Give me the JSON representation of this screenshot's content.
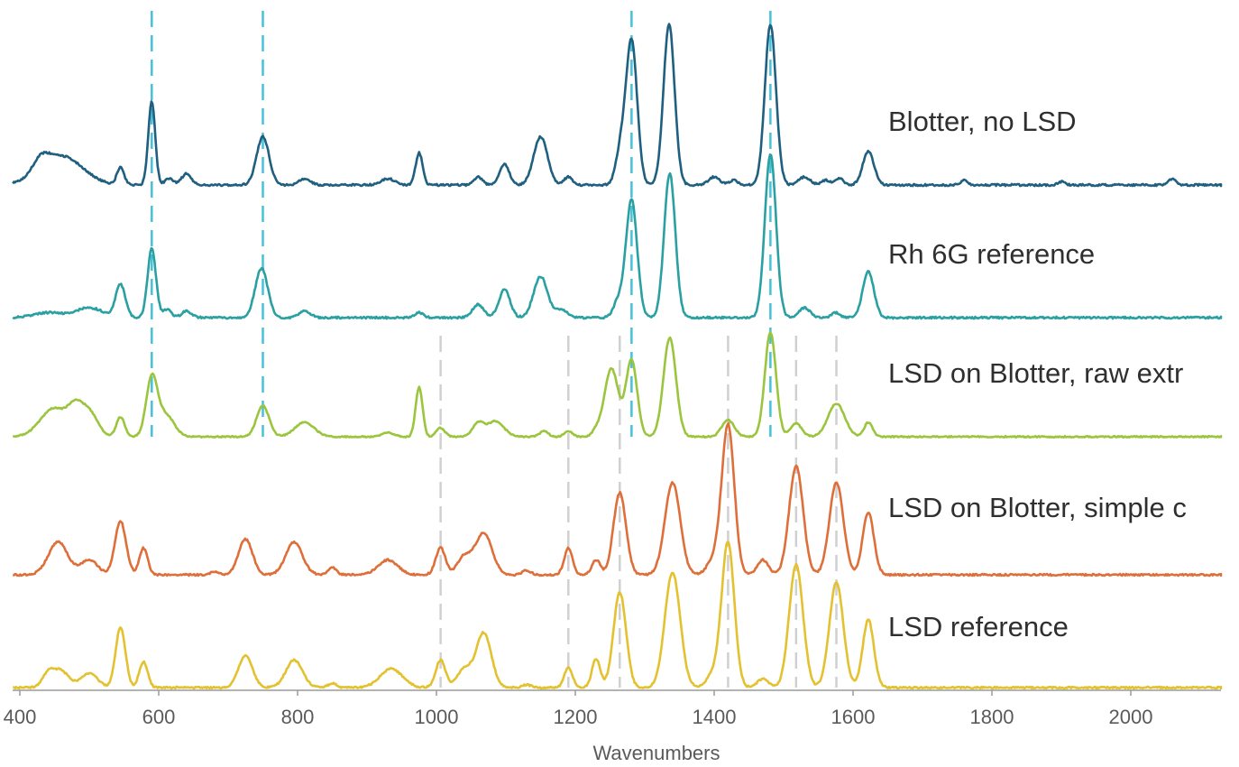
{
  "chart_data": {
    "type": "line",
    "xlabel": "Wavenumbers",
    "ylabel": "",
    "xlim": [
      400,
      2150
    ],
    "x_ticks": [
      400,
      600,
      800,
      1000,
      1200,
      1400,
      1600,
      1800,
      2000
    ],
    "x_tick_labels": [
      "400",
      "600",
      "800",
      "1000",
      "1200",
      "1400",
      "1600",
      "1800",
      "2000"
    ],
    "grid": false,
    "legend": "inline labels to the right of each trace",
    "blue_reference_lines": [
      590,
      750,
      1281,
      1481
    ],
    "grey_reference_lines": [
      1006,
      1190,
      1264,
      1420,
      1518,
      1576
    ],
    "series": [
      {
        "name": "Blotter, no LSD",
        "label": "Blotter, no LSD",
        "color": "#1f5f7f",
        "peaks": [
          [
            460,
            0.18,
            30
          ],
          [
            430,
            0.08,
            12
          ],
          [
            545,
            0.11,
            5
          ],
          [
            590,
            0.52,
            5
          ],
          [
            615,
            0.04,
            6
          ],
          [
            640,
            0.07,
            7
          ],
          [
            750,
            0.3,
            9
          ],
          [
            810,
            0.04,
            8
          ],
          [
            930,
            0.04,
            10
          ],
          [
            975,
            0.2,
            5
          ],
          [
            1060,
            0.05,
            6
          ],
          [
            1098,
            0.13,
            7
          ],
          [
            1150,
            0.3,
            10
          ],
          [
            1190,
            0.05,
            6
          ],
          [
            1265,
            0.2,
            7
          ],
          [
            1281,
            0.9,
            8
          ],
          [
            1335,
            1.0,
            8
          ],
          [
            1400,
            0.05,
            8
          ],
          [
            1428,
            0.03,
            6
          ],
          [
            1481,
            1.0,
            8
          ],
          [
            1530,
            0.05,
            8
          ],
          [
            1560,
            0.03,
            6
          ],
          [
            1580,
            0.04,
            6
          ],
          [
            1622,
            0.21,
            8
          ],
          [
            1760,
            0.03,
            5
          ],
          [
            1900,
            0.02,
            5
          ],
          [
            2060,
            0.04,
            5
          ]
        ]
      },
      {
        "name": "Rh 6G reference",
        "label": "Rh 6G reference",
        "color": "#2ba0a2",
        "peaks": [
          [
            440,
            0.03,
            20
          ],
          [
            500,
            0.06,
            20
          ],
          [
            545,
            0.2,
            7
          ],
          [
            590,
            0.42,
            6
          ],
          [
            612,
            0.05,
            6
          ],
          [
            640,
            0.04,
            7
          ],
          [
            748,
            0.3,
            9
          ],
          [
            810,
            0.04,
            8
          ],
          [
            975,
            0.03,
            6
          ],
          [
            1060,
            0.08,
            8
          ],
          [
            1098,
            0.17,
            8
          ],
          [
            1150,
            0.25,
            10
          ],
          [
            1180,
            0.05,
            8
          ],
          [
            1262,
            0.1,
            7
          ],
          [
            1281,
            0.72,
            8
          ],
          [
            1336,
            0.88,
            8
          ],
          [
            1481,
            1.0,
            8
          ],
          [
            1530,
            0.06,
            8
          ],
          [
            1575,
            0.03,
            6
          ],
          [
            1622,
            0.28,
            8
          ]
        ]
      },
      {
        "name": "LSD on Blotter, raw extract",
        "label": "LSD on Blotter, raw extr",
        "color": "#9ac53d",
        "peaks": [
          [
            450,
            0.26,
            20
          ],
          [
            480,
            0.2,
            10
          ],
          [
            500,
            0.22,
            12
          ],
          [
            545,
            0.18,
            6
          ],
          [
            590,
            0.52,
            8
          ],
          [
            610,
            0.2,
            12
          ],
          [
            750,
            0.28,
            9
          ],
          [
            810,
            0.13,
            14
          ],
          [
            930,
            0.04,
            8
          ],
          [
            975,
            0.45,
            5
          ],
          [
            1006,
            0.08,
            6
          ],
          [
            1060,
            0.12,
            8
          ],
          [
            1085,
            0.14,
            12
          ],
          [
            1155,
            0.05,
            6
          ],
          [
            1190,
            0.05,
            6
          ],
          [
            1230,
            0.05,
            6
          ],
          [
            1252,
            0.62,
            10
          ],
          [
            1281,
            0.7,
            8
          ],
          [
            1336,
            0.9,
            9
          ],
          [
            1420,
            0.15,
            9
          ],
          [
            1481,
            0.95,
            8
          ],
          [
            1518,
            0.12,
            8
          ],
          [
            1576,
            0.3,
            12
          ],
          [
            1622,
            0.13,
            6
          ]
        ]
      },
      {
        "name": "LSD on Blotter, simple cleanup",
        "label": "LSD on Blotter, simple c",
        "color": "#de6f3a",
        "peaks": [
          [
            455,
            0.22,
            14
          ],
          [
            500,
            0.1,
            12
          ],
          [
            545,
            0.36,
            8
          ],
          [
            578,
            0.18,
            6
          ],
          [
            680,
            0.02,
            6
          ],
          [
            725,
            0.24,
            10
          ],
          [
            795,
            0.22,
            12
          ],
          [
            850,
            0.05,
            6
          ],
          [
            930,
            0.1,
            14
          ],
          [
            1006,
            0.18,
            7
          ],
          [
            1040,
            0.12,
            10
          ],
          [
            1068,
            0.28,
            12
          ],
          [
            1130,
            0.03,
            6
          ],
          [
            1190,
            0.18,
            6
          ],
          [
            1230,
            0.1,
            6
          ],
          [
            1264,
            0.55,
            9
          ],
          [
            1340,
            0.62,
            11
          ],
          [
            1400,
            0.1,
            10
          ],
          [
            1420,
            1.0,
            9
          ],
          [
            1470,
            0.1,
            8
          ],
          [
            1518,
            0.73,
            10
          ],
          [
            1576,
            0.62,
            10
          ],
          [
            1622,
            0.42,
            8
          ]
        ]
      },
      {
        "name": "LSD reference",
        "label": "LSD reference",
        "color": "#e3c12f",
        "peaks": [
          [
            440,
            0.08,
            8
          ],
          [
            458,
            0.12,
            12
          ],
          [
            500,
            0.1,
            12
          ],
          [
            545,
            0.42,
            7
          ],
          [
            578,
            0.18,
            6
          ],
          [
            725,
            0.22,
            10
          ],
          [
            795,
            0.19,
            12
          ],
          [
            850,
            0.03,
            6
          ],
          [
            935,
            0.13,
            16
          ],
          [
            1006,
            0.19,
            7
          ],
          [
            1040,
            0.13,
            10
          ],
          [
            1068,
            0.38,
            11
          ],
          [
            1130,
            0.02,
            6
          ],
          [
            1190,
            0.14,
            6
          ],
          [
            1230,
            0.2,
            6
          ],
          [
            1264,
            0.66,
            9
          ],
          [
            1340,
            0.8,
            11
          ],
          [
            1400,
            0.1,
            10
          ],
          [
            1420,
            1.0,
            9
          ],
          [
            1470,
            0.06,
            8
          ],
          [
            1518,
            0.85,
            10
          ],
          [
            1576,
            0.73,
            10
          ],
          [
            1622,
            0.47,
            8
          ]
        ]
      }
    ]
  }
}
